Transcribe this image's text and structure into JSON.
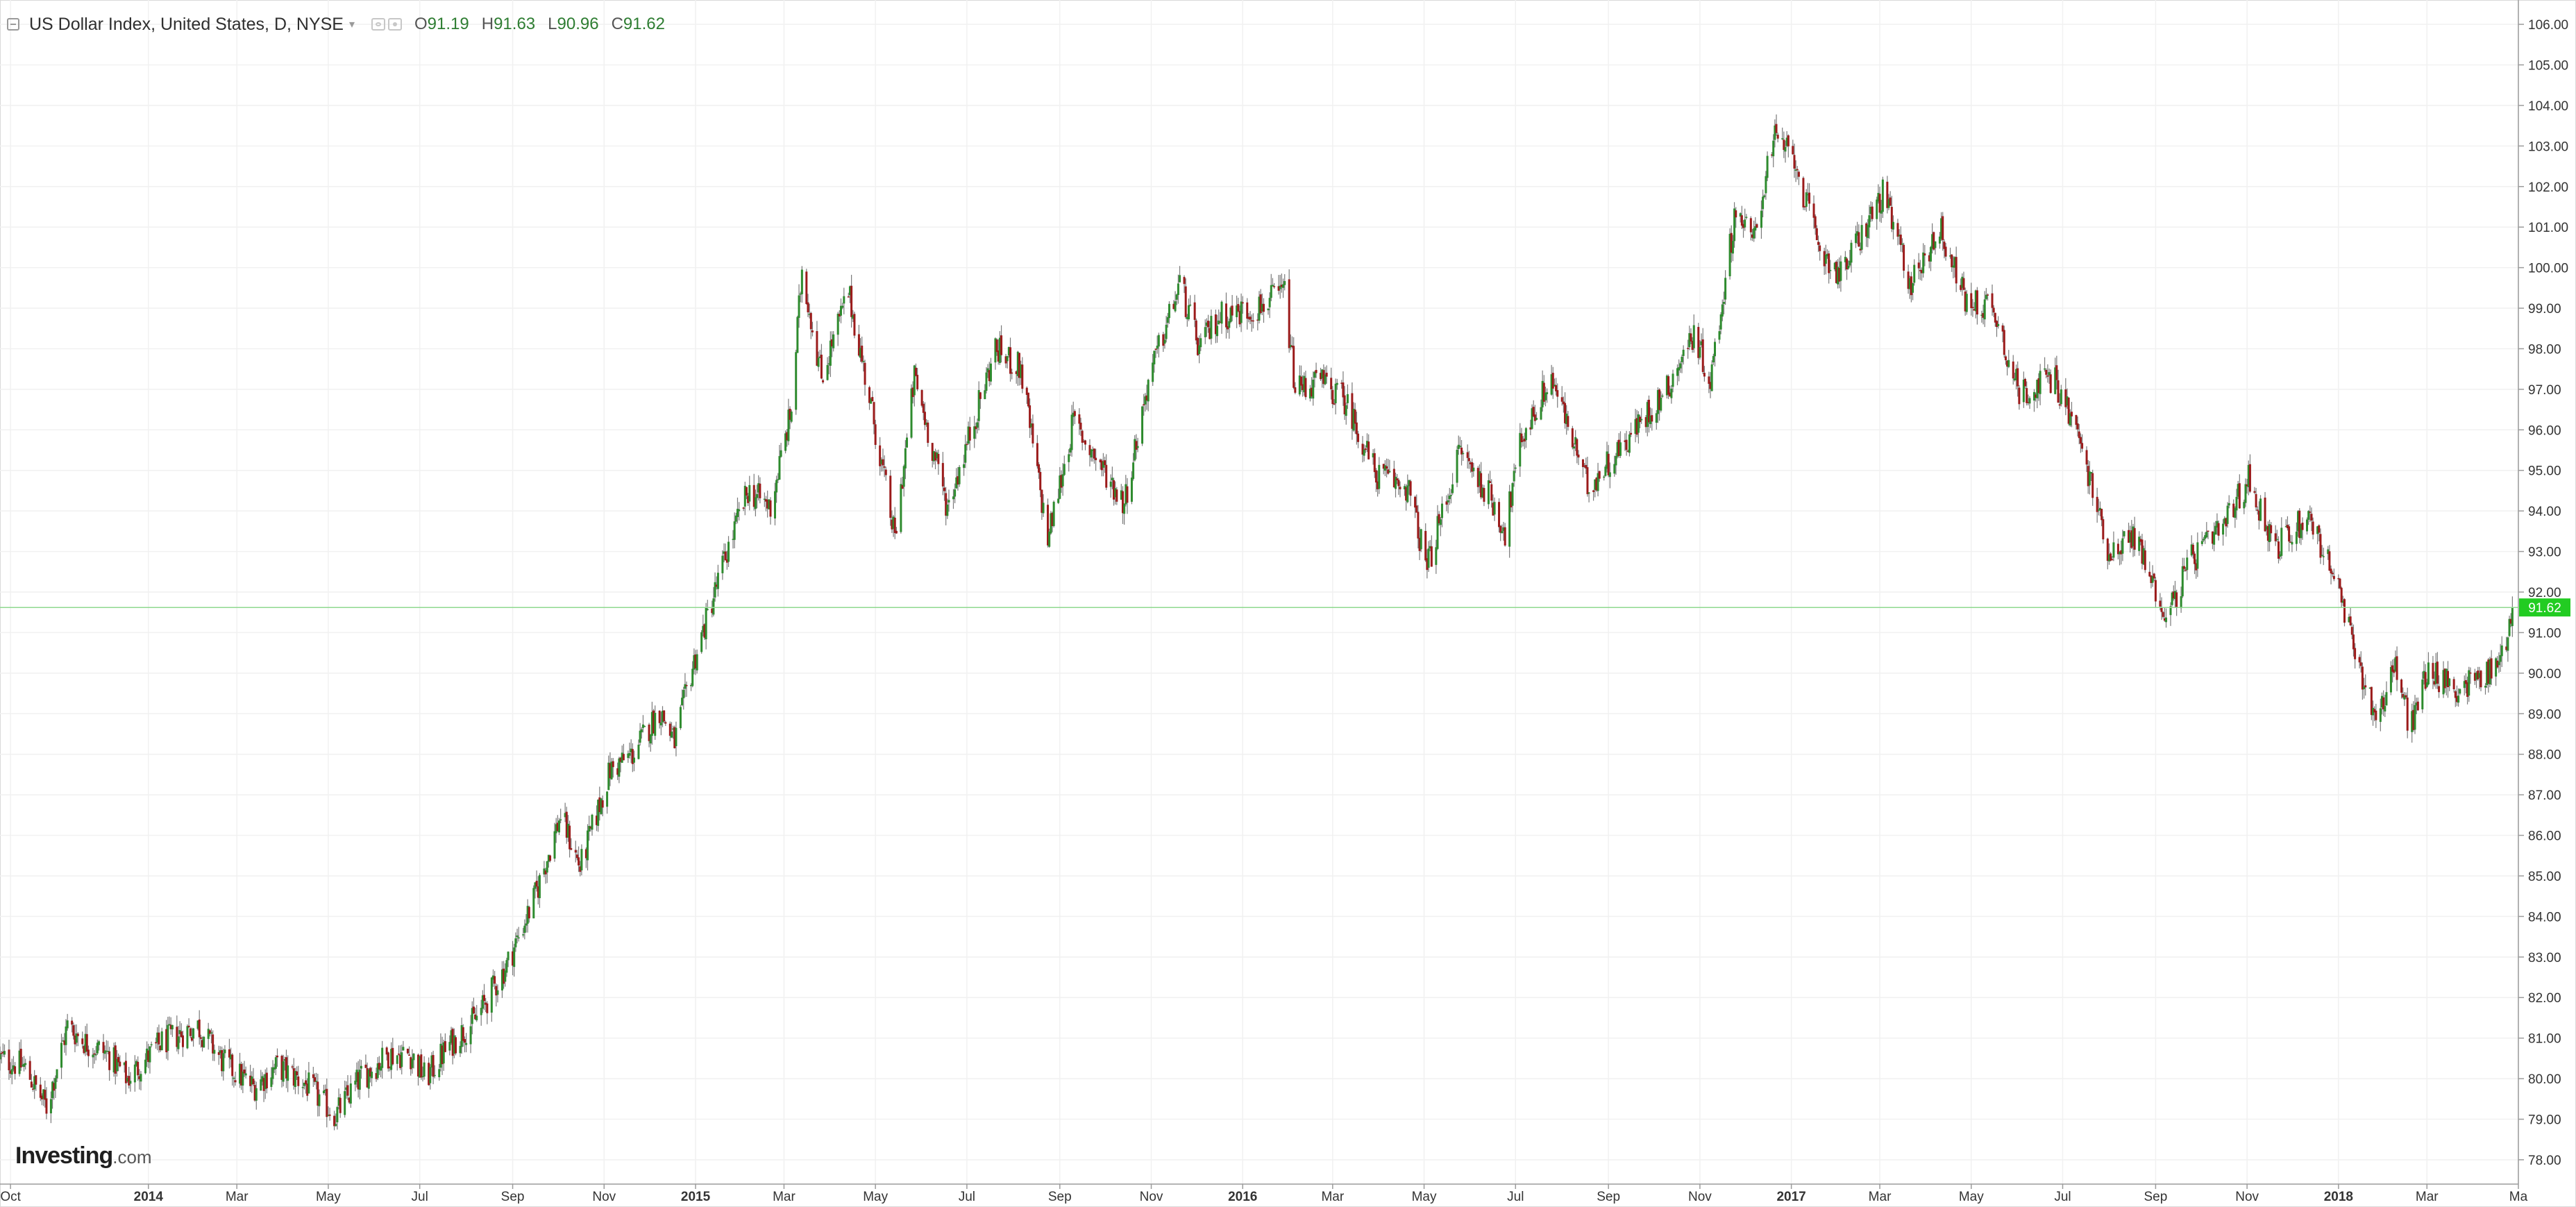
{
  "legend": {
    "title": "US Dollar Index, United States, D, NYSE",
    "open_label": "O",
    "open": "91.19",
    "high_label": "H",
    "high": "91.63",
    "low_label": "L",
    "low": "90.96",
    "close_label": "C",
    "close": "91.62"
  },
  "watermark": {
    "brand": "Investing",
    "suffix": ".com"
  },
  "colors": {
    "up": "#2e8b2e",
    "down": "#9b1b1b",
    "wick": "#7a7a7a",
    "grid": "#f1f1f1",
    "last_price_line": "#8fd98f",
    "last_price_badge": "#22cc22",
    "axis_text": "#333333"
  },
  "chart_data": {
    "type": "candlestick",
    "title": "US Dollar Index, United States, D, NYSE",
    "x_tick_labels": [
      {
        "label": "Oct",
        "date": "2013-10-01",
        "bold": false
      },
      {
        "label": "2014",
        "date": "2014-01-01",
        "bold": true
      },
      {
        "label": "Mar",
        "date": "2014-03-01",
        "bold": false
      },
      {
        "label": "May",
        "date": "2014-05-01",
        "bold": false
      },
      {
        "label": "Jul",
        "date": "2014-07-01",
        "bold": false
      },
      {
        "label": "Sep",
        "date": "2014-09-01",
        "bold": false
      },
      {
        "label": "Nov",
        "date": "2014-11-01",
        "bold": false
      },
      {
        "label": "2015",
        "date": "2015-01-01",
        "bold": true
      },
      {
        "label": "Mar",
        "date": "2015-03-01",
        "bold": false
      },
      {
        "label": "May",
        "date": "2015-05-01",
        "bold": false
      },
      {
        "label": "Jul",
        "date": "2015-07-01",
        "bold": false
      },
      {
        "label": "Sep",
        "date": "2015-09-01",
        "bold": false
      },
      {
        "label": "Nov",
        "date": "2015-11-01",
        "bold": false
      },
      {
        "label": "2016",
        "date": "2016-01-01",
        "bold": true
      },
      {
        "label": "Mar",
        "date": "2016-03-01",
        "bold": false
      },
      {
        "label": "May",
        "date": "2016-05-01",
        "bold": false
      },
      {
        "label": "Jul",
        "date": "2016-07-01",
        "bold": false
      },
      {
        "label": "Sep",
        "date": "2016-09-01",
        "bold": false
      },
      {
        "label": "Nov",
        "date": "2016-11-01",
        "bold": false
      },
      {
        "label": "2017",
        "date": "2017-01-01",
        "bold": true
      },
      {
        "label": "Mar",
        "date": "2017-03-01",
        "bold": false
      },
      {
        "label": "May",
        "date": "2017-05-01",
        "bold": false
      },
      {
        "label": "Jul",
        "date": "2017-07-01",
        "bold": false
      },
      {
        "label": "Sep",
        "date": "2017-09-01",
        "bold": false
      },
      {
        "label": "Nov",
        "date": "2017-11-01",
        "bold": false
      },
      {
        "label": "2018",
        "date": "2018-01-01",
        "bold": true
      },
      {
        "label": "Mar",
        "date": "2018-03-01",
        "bold": false
      },
      {
        "label": "Ma",
        "date": "2018-05-01",
        "bold": false
      }
    ],
    "y_ticks": [
      "78.00",
      "79.00",
      "80.00",
      "81.00",
      "82.00",
      "83.00",
      "84.00",
      "85.00",
      "86.00",
      "87.00",
      "88.00",
      "89.00",
      "90.00",
      "91.00",
      "92.00",
      "93.00",
      "94.00",
      "95.00",
      "96.00",
      "97.00",
      "98.00",
      "99.00",
      "100.00",
      "101.00",
      "102.00",
      "103.00",
      "104.00",
      "105.00",
      "106.00"
    ],
    "ylim": [
      77.4,
      106.6
    ],
    "xlim": [
      "2013-09-24",
      "2018-05-01"
    ],
    "grid": true,
    "last_price": 91.62,
    "last_price_label": "91.62",
    "close_path": [
      [
        "2013-09-24",
        80.5
      ],
      [
        "2013-10-10",
        80.3
      ],
      [
        "2013-10-25",
        79.3
      ],
      [
        "2013-11-08",
        81.3
      ],
      [
        "2013-11-20",
        80.9
      ],
      [
        "2013-12-05",
        80.6
      ],
      [
        "2013-12-18",
        80.0
      ],
      [
        "2014-01-10",
        80.9
      ],
      [
        "2014-02-03",
        81.3
      ],
      [
        "2014-02-20",
        80.4
      ],
      [
        "2014-03-12",
        79.8
      ],
      [
        "2014-03-28",
        80.3
      ],
      [
        "2014-04-15",
        79.9
      ],
      [
        "2014-05-06",
        79.1
      ],
      [
        "2014-05-22",
        80.0
      ],
      [
        "2014-06-10",
        80.6
      ],
      [
        "2014-06-25",
        80.6
      ],
      [
        "2014-07-05",
        80.0
      ],
      [
        "2014-07-20",
        80.8
      ],
      [
        "2014-08-08",
        81.5
      ],
      [
        "2014-08-28",
        82.8
      ],
      [
        "2014-09-15",
        84.4
      ],
      [
        "2014-10-03",
        86.5
      ],
      [
        "2014-10-16",
        85.2
      ],
      [
        "2014-11-05",
        87.6
      ],
      [
        "2014-11-20",
        88.0
      ],
      [
        "2014-12-08",
        89.1
      ],
      [
        "2014-12-18",
        88.3
      ],
      [
        "2014-12-31",
        90.3
      ],
      [
        "2015-01-22",
        93.0
      ],
      [
        "2015-02-05",
        94.5
      ],
      [
        "2015-02-20",
        94.1
      ],
      [
        "2015-03-06",
        96.5
      ],
      [
        "2015-03-13",
        100.0
      ],
      [
        "2015-03-26",
        97.3
      ],
      [
        "2015-04-13",
        99.4
      ],
      [
        "2015-04-28",
        96.6
      ],
      [
        "2015-05-14",
        93.3
      ],
      [
        "2015-05-27",
        97.3
      ],
      [
        "2015-06-18",
        94.1
      ],
      [
        "2015-07-08",
        96.5
      ],
      [
        "2015-07-20",
        98.0
      ],
      [
        "2015-08-06",
        97.5
      ],
      [
        "2015-08-24",
        93.3
      ],
      [
        "2015-09-10",
        96.2
      ],
      [
        "2015-10-14",
        94.2
      ],
      [
        "2015-10-30",
        97.2
      ],
      [
        "2015-11-20",
        99.6
      ],
      [
        "2015-12-03",
        98.0
      ],
      [
        "2015-12-16",
        98.8
      ],
      [
        "2016-01-10",
        99.0
      ],
      [
        "2016-01-29",
        99.4
      ],
      [
        "2016-02-05",
        97.0
      ],
      [
        "2016-02-22",
        97.2
      ],
      [
        "2016-03-10",
        96.7
      ],
      [
        "2016-03-30",
        94.9
      ],
      [
        "2016-04-20",
        94.6
      ],
      [
        "2016-05-03",
        92.6
      ],
      [
        "2016-05-25",
        95.5
      ],
      [
        "2016-06-15",
        94.3
      ],
      [
        "2016-06-24",
        93.5
      ],
      [
        "2016-07-05",
        95.8
      ],
      [
        "2016-07-25",
        97.3
      ],
      [
        "2016-08-18",
        94.6
      ],
      [
        "2016-09-10",
        95.6
      ],
      [
        "2016-10-10",
        97.0
      ],
      [
        "2016-10-28",
        98.4
      ],
      [
        "2016-11-08",
        97.2
      ],
      [
        "2016-11-25",
        101.5
      ],
      [
        "2016-12-06",
        100.6
      ],
      [
        "2016-12-20",
        103.2
      ],
      [
        "2017-01-03",
        102.7
      ],
      [
        "2017-01-18",
        100.6
      ],
      [
        "2017-02-03",
        99.8
      ],
      [
        "2017-02-22",
        101.2
      ],
      [
        "2017-03-03",
        101.8
      ],
      [
        "2017-03-22",
        99.6
      ],
      [
        "2017-04-10",
        101.0
      ],
      [
        "2017-04-28",
        99.1
      ],
      [
        "2017-05-15",
        99.1
      ],
      [
        "2017-06-02",
        96.9
      ],
      [
        "2017-06-25",
        97.3
      ],
      [
        "2017-07-10",
        96.0
      ],
      [
        "2017-08-01",
        93.0
      ],
      [
        "2017-08-18",
        93.4
      ],
      [
        "2017-09-08",
        91.4
      ],
      [
        "2017-09-25",
        92.8
      ],
      [
        "2017-10-15",
        93.5
      ],
      [
        "2017-11-02",
        94.8
      ],
      [
        "2017-11-20",
        93.1
      ],
      [
        "2017-12-12",
        93.9
      ],
      [
        "2017-12-29",
        92.4
      ],
      [
        "2018-01-12",
        90.5
      ],
      [
        "2018-01-26",
        88.9
      ],
      [
        "2018-02-08",
        90.2
      ],
      [
        "2018-02-18",
        88.6
      ],
      [
        "2018-03-01",
        90.1
      ],
      [
        "2018-03-20",
        89.6
      ],
      [
        "2018-04-10",
        90.0
      ],
      [
        "2018-04-20",
        90.4
      ],
      [
        "2018-04-27",
        91.62
      ]
    ]
  }
}
